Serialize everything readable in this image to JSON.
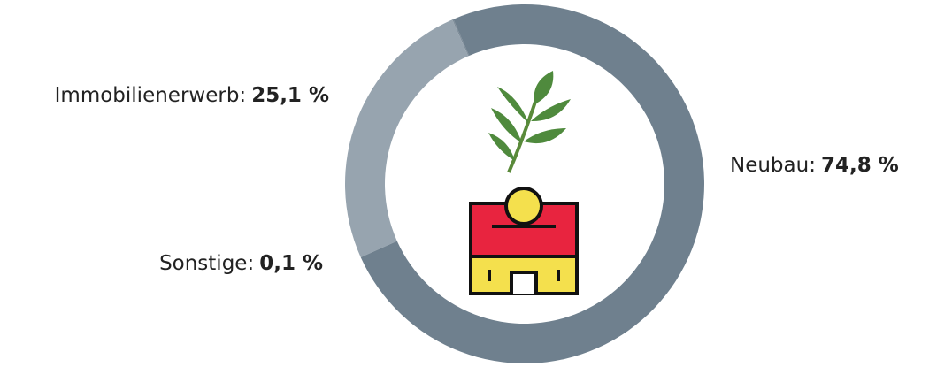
{
  "chart_data": {
    "type": "donut",
    "categories": [
      "Neubau:",
      "Immobilienerwerb:",
      "Sonstige:"
    ],
    "values": [
      74.8,
      25.1,
      0.1
    ],
    "value_labels": [
      "74,8 %",
      "25,1 %",
      "0,1 %"
    ],
    "colors": [
      "#6f808e",
      "#97a4af",
      "#7b8a97"
    ]
  }
}
